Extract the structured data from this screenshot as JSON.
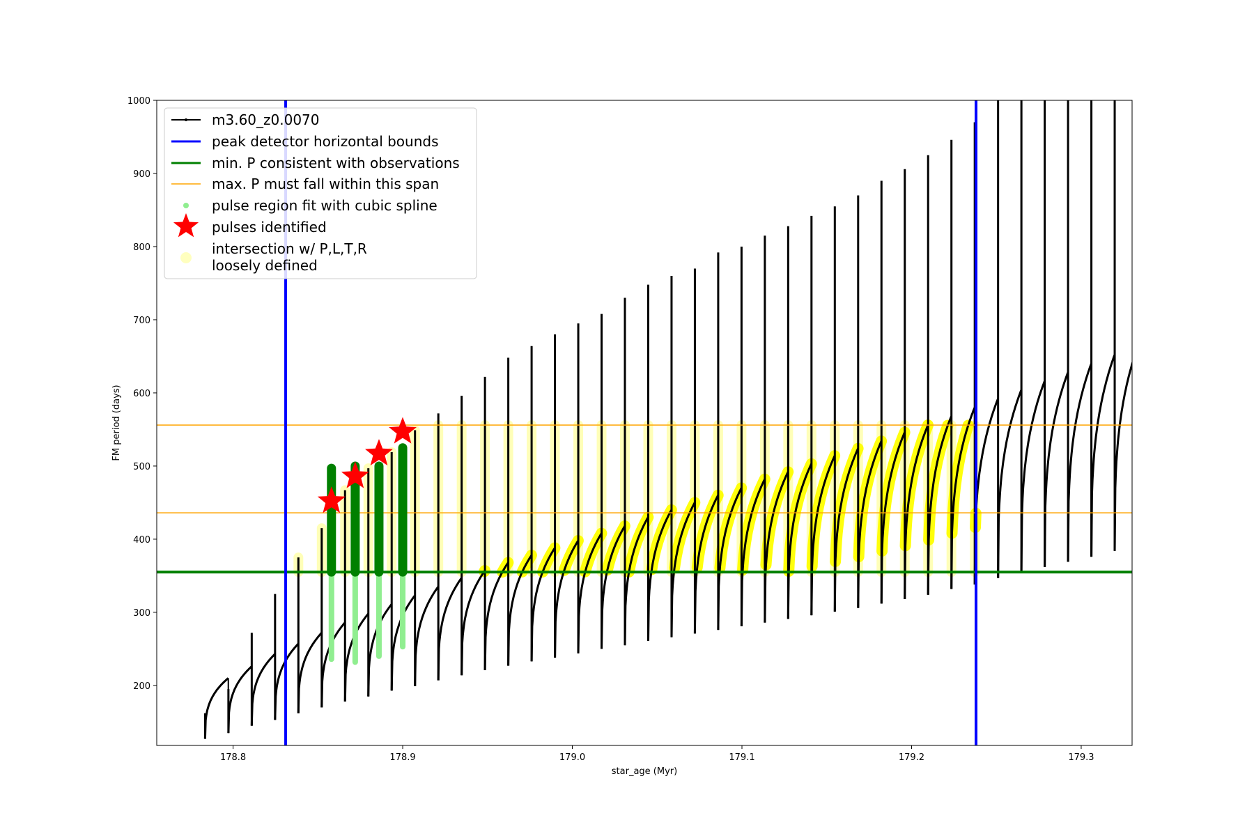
{
  "chart_data": {
    "type": "line",
    "title": "",
    "xlabel": "star_age (Myr)",
    "ylabel": "FM period (days)",
    "xlim": [
      178.755,
      179.33
    ],
    "ylim": [
      118,
      1000
    ],
    "xticks": [
      {
        "value": 178.8,
        "label": "178.8"
      },
      {
        "value": 178.9,
        "label": "178.9"
      },
      {
        "value": 179.0,
        "label": "179.0"
      },
      {
        "value": 179.1,
        "label": "179.1"
      },
      {
        "value": 179.2,
        "label": "179.2"
      },
      {
        "value": 179.3,
        "label": "179.3"
      }
    ],
    "yticks": [
      {
        "value": 200,
        "label": "200"
      },
      {
        "value": 300,
        "label": "300"
      },
      {
        "value": 400,
        "label": "400"
      },
      {
        "value": 500,
        "label": "500"
      },
      {
        "value": 600,
        "label": "600"
      },
      {
        "value": 700,
        "label": "700"
      },
      {
        "value": 800,
        "label": "800"
      },
      {
        "value": 900,
        "label": "900"
      },
      {
        "value": 1000,
        "label": "1000"
      }
    ],
    "grid": false,
    "legend_position": "top-left",
    "colors": {
      "track": "#000000",
      "bounds": "#0000ff",
      "min_p": "#008000",
      "max_p": "#ffa500",
      "spline": "#90ee90",
      "pulse": "#ff0000",
      "intersection": "#ffff00"
    },
    "series": [
      {
        "name": "m3.60_z0.0070",
        "kind": "pulse-track",
        "x_start": 178.7835,
        "spacing": 0.01375,
        "count": 40,
        "pulses": [
          {
            "spike_top": 162,
            "base_min": 127,
            "base_max": 210
          },
          {
            "spike_top": 195,
            "base_min": 135,
            "base_max": 226
          },
          {
            "spike_top": 272,
            "base_min": 145,
            "base_max": 243
          },
          {
            "spike_top": 325,
            "base_min": 153,
            "base_max": 257
          },
          {
            "spike_top": 375,
            "base_min": 162,
            "base_max": 272
          },
          {
            "spike_top": 415,
            "base_min": 170,
            "base_max": 286
          },
          {
            "spike_top": 467,
            "base_min": 178,
            "base_max": 298
          },
          {
            "spike_top": 497,
            "base_min": 185,
            "base_max": 311
          },
          {
            "spike_top": 519,
            "base_min": 193,
            "base_max": 323
          },
          {
            "spike_top": 549,
            "base_min": 199,
            "base_max": 335
          },
          {
            "spike_top": 572,
            "base_min": 207,
            "base_max": 347
          },
          {
            "spike_top": 596,
            "base_min": 214,
            "base_max": 357
          },
          {
            "spike_top": 622,
            "base_min": 221,
            "base_max": 368
          },
          {
            "spike_top": 648,
            "base_min": 227,
            "base_max": 378
          },
          {
            "spike_top": 664,
            "base_min": 233,
            "base_max": 388
          },
          {
            "spike_top": 680,
            "base_min": 238,
            "base_max": 398
          },
          {
            "spike_top": 695,
            "base_min": 244,
            "base_max": 408
          },
          {
            "spike_top": 708,
            "base_min": 250,
            "base_max": 418
          },
          {
            "spike_top": 730,
            "base_min": 255,
            "base_max": 430
          },
          {
            "spike_top": 748,
            "base_min": 261,
            "base_max": 440
          },
          {
            "spike_top": 760,
            "base_min": 266,
            "base_max": 450
          },
          {
            "spike_top": 770,
            "base_min": 271,
            "base_max": 460
          },
          {
            "spike_top": 792,
            "base_min": 276,
            "base_max": 470
          },
          {
            "spike_top": 800,
            "base_min": 281,
            "base_max": 482
          },
          {
            "spike_top": 815,
            "base_min": 286,
            "base_max": 492
          },
          {
            "spike_top": 828,
            "base_min": 291,
            "base_max": 503
          },
          {
            "spike_top": 842,
            "base_min": 296,
            "base_max": 514
          },
          {
            "spike_top": 855,
            "base_min": 301,
            "base_max": 524
          },
          {
            "spike_top": 870,
            "base_min": 306,
            "base_max": 534
          },
          {
            "spike_top": 890,
            "base_min": 312,
            "base_max": 546
          },
          {
            "spike_top": 906,
            "base_min": 318,
            "base_max": 556
          },
          {
            "spike_top": 925,
            "base_min": 324,
            "base_max": 568
          },
          {
            "spike_top": 946,
            "base_min": 332,
            "base_max": 580
          },
          {
            "spike_top": 970,
            "base_min": 338,
            "base_max": 592
          },
          {
            "spike_top": 1000,
            "base_min": 347,
            "base_max": 604
          },
          {
            "spike_top": 1000,
            "base_min": 356,
            "base_max": 616
          },
          {
            "spike_top": 1000,
            "base_min": 362,
            "base_max": 628
          },
          {
            "spike_top": 1000,
            "base_min": 369,
            "base_max": 640
          },
          {
            "spike_top": 1000,
            "base_min": 376,
            "base_max": 652
          },
          {
            "spike_top": 1000,
            "base_min": 384,
            "base_max": 664
          }
        ]
      },
      {
        "name": "peak detector horizontal bounds",
        "kind": "vlines",
        "x": [
          178.831,
          179.238
        ]
      },
      {
        "name": "min. P consistent with observations",
        "kind": "hline",
        "y": 355
      },
      {
        "name": "max. P must fall within this span",
        "kind": "hlines",
        "y": [
          436,
          556
        ]
      },
      {
        "name": "pulse region fit with cubic spline",
        "kind": "spline-columns",
        "columns": [
          {
            "x": 178.858,
            "y_min": 236,
            "y_max": 497
          },
          {
            "x": 178.872,
            "y_min": 232,
            "y_max": 500
          },
          {
            "x": 178.886,
            "y_min": 240,
            "y_max": 500
          },
          {
            "x": 178.9,
            "y_min": 253,
            "y_max": 525
          }
        ]
      },
      {
        "name": "pulses identified",
        "kind": "markers",
        "points": [
          {
            "x": 178.858,
            "y": 452
          },
          {
            "x": 178.872,
            "y": 486
          },
          {
            "x": 178.886,
            "y": 517
          },
          {
            "x": 178.9,
            "y": 547
          }
        ]
      },
      {
        "name": "intersection w/ P,L,T,R\nloosely defined",
        "kind": "intersection-region",
        "x_start": 178.831,
        "x_end": 179.238,
        "y_min": 355,
        "y_max": 556
      }
    ],
    "legend": [
      {
        "label": "m3.60_z0.0070"
      },
      {
        "label": "peak detector horizontal bounds"
      },
      {
        "label": "min. P consistent with observations"
      },
      {
        "label": "max. P must fall within this span"
      },
      {
        "label": "pulse region fit with cubic spline"
      },
      {
        "label": "pulses identified"
      },
      {
        "label_line1": "intersection w/ P,L,T,R",
        "label_line2": "loosely defined"
      }
    ]
  }
}
